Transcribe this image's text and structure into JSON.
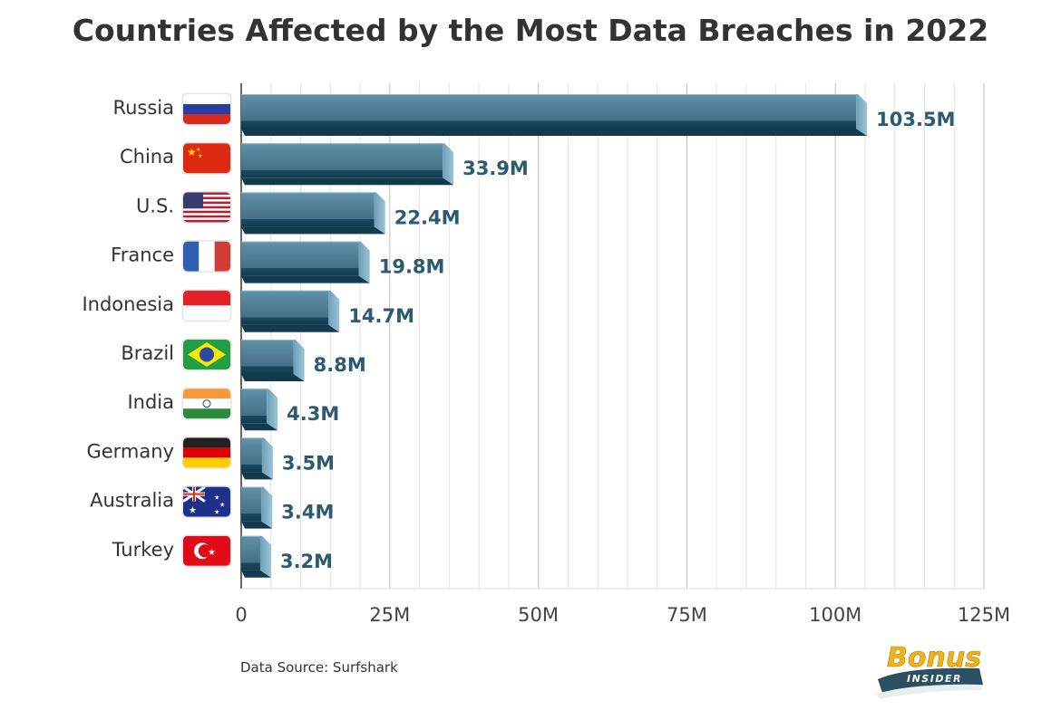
{
  "chart_data": {
    "type": "bar",
    "orientation": "horizontal",
    "title": "Countries Affected by the Most Data Breaches in 2022",
    "categories": [
      "Russia",
      "China",
      "U.S.",
      "France",
      "Indonesia",
      "Brazil",
      "India",
      "Germany",
      "Australia",
      "Turkey"
    ],
    "values": [
      103.5,
      33.9,
      22.4,
      19.8,
      14.7,
      8.8,
      4.3,
      3.5,
      3.4,
      3.2
    ],
    "value_labels": [
      "103.5M",
      "33.9M",
      "22.4M",
      "19.8M",
      "14.7M",
      "8.8M",
      "4.3M",
      "3.5M",
      "3.4M",
      "3.2M"
    ],
    "flag_icons": [
      "russia-flag-icon",
      "china-flag-icon",
      "us-flag-icon",
      "france-flag-icon",
      "indonesia-flag-icon",
      "brazil-flag-icon",
      "india-flag-icon",
      "germany-flag-icon",
      "australia-flag-icon",
      "turkey-flag-icon"
    ],
    "x_ticks": [
      0,
      25,
      50,
      75,
      100,
      125
    ],
    "x_tick_labels": [
      "0",
      "25M",
      "50M",
      "75M",
      "100M",
      "125M"
    ],
    "xlim": [
      0,
      125
    ],
    "xlabel": "",
    "ylabel": "",
    "grid": "vertical",
    "bar_color": "#4e7f97"
  },
  "source": "Data Source: Surfshark",
  "logo": {
    "line1": "Bonus",
    "line2": "INSIDER"
  },
  "colors": {
    "bar_face": "#4e7f97",
    "bar_dark": "#163f55",
    "bar_side": "#78aac2",
    "value_text": "#2c5a70",
    "logo_gold": "#f0b21a",
    "logo_navy": "#2b4f63"
  }
}
